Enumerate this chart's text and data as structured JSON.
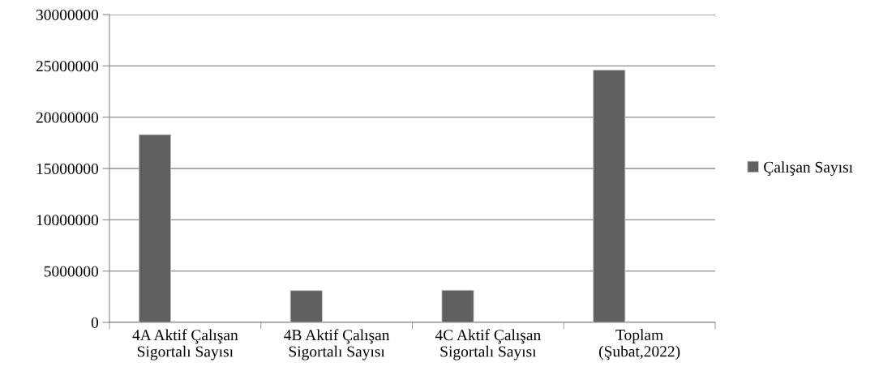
{
  "chart_data": {
    "type": "bar",
    "categories": [
      "4A Aktif Çalışan\nSigortalı Sayısı",
      "4B Aktif Çalışan\nSigortalı Sayısı",
      "4C Aktif Çalışan\nSigortalı Sayısı",
      "Toplam\n(Şubat,2022)"
    ],
    "series": [
      {
        "name": "Çalışan Sayısı",
        "color": "#606060",
        "values": [
          18300000,
          3100000,
          3130000,
          24600000
        ]
      }
    ],
    "ylim": [
      0,
      30000000
    ],
    "yticks": [
      0,
      5000000,
      10000000,
      15000000,
      20000000,
      25000000,
      30000000
    ],
    "grid": "y",
    "legend": "right"
  }
}
